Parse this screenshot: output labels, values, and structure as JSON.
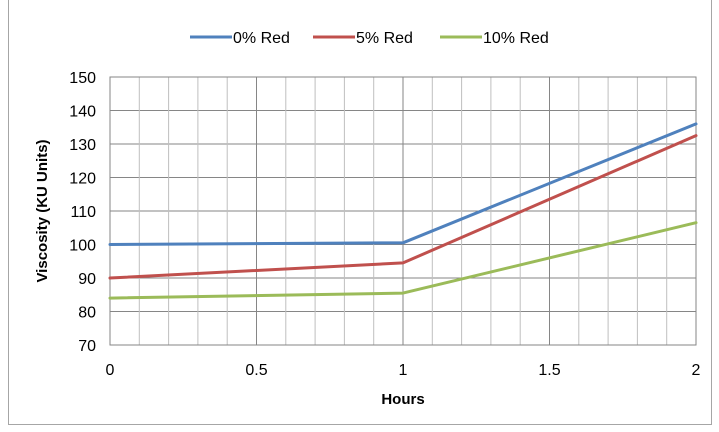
{
  "chart_data": {
    "type": "line",
    "xlabel": "Hours",
    "ylabel": "Viscosity (KU Units)",
    "x": [
      0,
      1,
      2
    ],
    "xlim": [
      0,
      2
    ],
    "xticks": [
      "0",
      "0.5",
      "1",
      "1.5",
      "2"
    ],
    "xtick_values": [
      0,
      0.5,
      1,
      1.5,
      2
    ],
    "ylim": [
      70,
      150
    ],
    "yticks": [
      "70",
      "80",
      "90",
      "100",
      "110",
      "120",
      "130",
      "140",
      "150"
    ],
    "ytick_values": [
      70,
      80,
      90,
      100,
      110,
      120,
      130,
      140,
      150
    ],
    "grid": true,
    "legend_position": "top",
    "series": [
      {
        "name": "0% Red",
        "color": "#4f81bd",
        "values": [
          100,
          100.5,
          136
        ]
      },
      {
        "name": "5% Red",
        "color": "#c0504d",
        "values": [
          90,
          94.5,
          132.5
        ]
      },
      {
        "name": "10% Red",
        "color": "#9bbb59",
        "values": [
          84,
          85.5,
          106.5
        ]
      }
    ]
  }
}
